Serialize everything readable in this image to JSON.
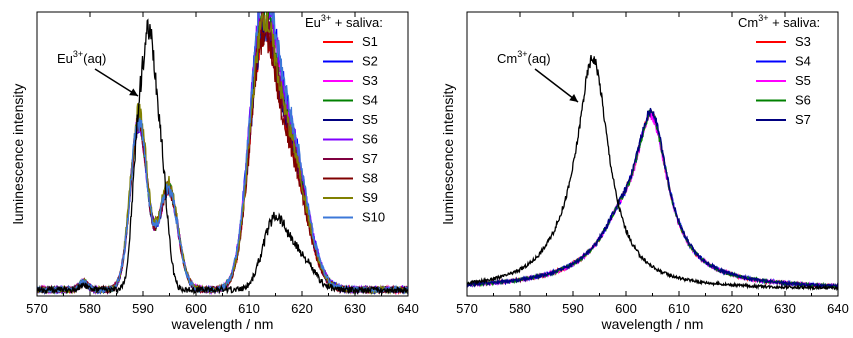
{
  "chart_data": [
    {
      "type": "line",
      "title": "",
      "xlabel": "wavelength / nm",
      "ylabel": "luminescence intensity",
      "xlim": [
        570,
        640
      ],
      "ylim": [
        0,
        1.0
      ],
      "xticks": [
        570,
        580,
        590,
        600,
        610,
        620,
        630,
        640
      ],
      "yticks_shown": false,
      "legend_title_base": "Eu",
      "legend_title_sup": "3+",
      "legend_title_tail": " + saliva:",
      "legend_position": "top-right",
      "annotation": {
        "base": "Eu",
        "sup": "3+",
        "tail": "(aq)",
        "points_to_x": 590.5,
        "points_to_y": 0.8
      },
      "series": [
        {
          "name": "S1",
          "color": "#ff0000",
          "peaks": [
            [
              589.2,
              0.66,
              1.6
            ],
            [
              594.8,
              0.4,
              1.8
            ],
            [
              612.4,
              0.86,
              2.4
            ],
            [
              617.5,
              0.52,
              3.2
            ],
            [
              578.8,
              0.03,
              0.8
            ]
          ]
        },
        {
          "name": "S2",
          "color": "#0000ff",
          "peaks": [
            [
              589.2,
              0.66,
              1.6
            ],
            [
              594.8,
              0.4,
              1.8
            ],
            [
              612.4,
              1.0,
              2.4
            ],
            [
              617.5,
              0.62,
              3.2
            ],
            [
              578.8,
              0.03,
              0.8
            ]
          ]
        },
        {
          "name": "S3",
          "color": "#ff00ff",
          "peaks": [
            [
              589.2,
              0.66,
              1.6
            ],
            [
              594.8,
              0.4,
              1.8
            ],
            [
              612.4,
              0.98,
              2.4
            ],
            [
              617.5,
              0.6,
              3.2
            ],
            [
              578.8,
              0.03,
              0.8
            ]
          ]
        },
        {
          "name": "S4",
          "color": "#008000",
          "peaks": [
            [
              589.2,
              0.66,
              1.6
            ],
            [
              594.8,
              0.4,
              1.8
            ],
            [
              612.4,
              0.93,
              2.4
            ],
            [
              617.5,
              0.58,
              3.2
            ],
            [
              578.8,
              0.03,
              0.8
            ]
          ]
        },
        {
          "name": "S5",
          "color": "#000080",
          "peaks": [
            [
              589.2,
              0.66,
              1.6
            ],
            [
              594.8,
              0.4,
              1.8
            ],
            [
              612.4,
              0.87,
              2.4
            ],
            [
              617.5,
              0.54,
              3.2
            ],
            [
              578.8,
              0.03,
              0.8
            ]
          ]
        },
        {
          "name": "S6",
          "color": "#8000ff",
          "peaks": [
            [
              589.2,
              0.66,
              1.6
            ],
            [
              594.8,
              0.4,
              1.8
            ],
            [
              612.4,
              0.99,
              2.4
            ],
            [
              617.5,
              0.61,
              3.2
            ],
            [
              578.8,
              0.03,
              0.8
            ]
          ]
        },
        {
          "name": "S7",
          "color": "#800040",
          "peaks": [
            [
              589.2,
              0.66,
              1.6
            ],
            [
              594.8,
              0.4,
              1.8
            ],
            [
              612.4,
              0.89,
              2.4
            ],
            [
              617.5,
              0.55,
              3.2
            ],
            [
              578.8,
              0.03,
              0.8
            ]
          ]
        },
        {
          "name": "S8",
          "color": "#800000",
          "peaks": [
            [
              589.2,
              0.66,
              1.6
            ],
            [
              594.8,
              0.4,
              1.8
            ],
            [
              612.4,
              0.85,
              2.4
            ],
            [
              617.5,
              0.51,
              3.2
            ],
            [
              578.8,
              0.03,
              0.8
            ]
          ]
        },
        {
          "name": "S9",
          "color": "#808000",
          "peaks": [
            [
              589.2,
              0.7,
              1.6
            ],
            [
              594.8,
              0.42,
              1.8
            ],
            [
              612.4,
              0.9,
              2.4
            ],
            [
              617.5,
              0.56,
              3.2
            ],
            [
              578.8,
              0.03,
              0.8
            ]
          ]
        },
        {
          "name": "S10",
          "color": "#3c78d8",
          "peaks": [
            [
              589.2,
              0.66,
              1.6
            ],
            [
              594.8,
              0.4,
              1.8
            ],
            [
              612.4,
              1.0,
              2.4
            ],
            [
              617.5,
              0.63,
              3.2
            ],
            [
              578.8,
              0.03,
              0.8
            ]
          ]
        },
        {
          "name": "",
          "color": "#000000",
          "peaks": [
            [
              591.0,
              0.97,
              1.5
            ],
            [
              588.7,
              0.3,
              1.0
            ],
            [
              593.6,
              0.35,
              1.2
            ],
            [
              614.8,
              0.27,
              2.2
            ],
            [
              619.5,
              0.13,
              2.5
            ],
            [
              578.8,
              0.02,
              0.8
            ]
          ]
        }
      ]
    },
    {
      "type": "line",
      "title": "",
      "xlabel": "wavelength / nm",
      "ylabel": "luminescence intensity",
      "xlim": [
        570,
        640
      ],
      "ylim": [
        0,
        1.0
      ],
      "xticks": [
        570,
        580,
        590,
        600,
        610,
        620,
        630,
        640
      ],
      "yticks_shown": false,
      "legend_title_base": "Cm",
      "legend_title_sup": "3+",
      "legend_title_tail": " + saliva:",
      "legend_position": "top-right",
      "annotation": {
        "base": "Cm",
        "sup": "3+",
        "tail": "(aq)",
        "points_to_x": 591.5,
        "points_to_y": 0.75
      },
      "series": [
        {
          "name": "S3",
          "color": "#ff0000",
          "lorentz": [
            [
              604.8,
              0.6,
              3.8
            ],
            [
              598.5,
              0.1,
              4.0
            ],
            [
              600.0,
              0.08,
              12.0
            ]
          ]
        },
        {
          "name": "S4",
          "color": "#0000ff",
          "lorentz": [
            [
              604.8,
              0.6,
              3.8
            ],
            [
              598.5,
              0.1,
              4.0
            ],
            [
              600.0,
              0.08,
              12.0
            ]
          ]
        },
        {
          "name": "S5",
          "color": "#ff00ff",
          "lorentz": [
            [
              604.8,
              0.59,
              3.8
            ],
            [
              598.5,
              0.1,
              4.0
            ],
            [
              600.0,
              0.08,
              12.0
            ]
          ]
        },
        {
          "name": "S6",
          "color": "#008000",
          "lorentz": [
            [
              604.8,
              0.6,
              3.8
            ],
            [
              598.5,
              0.1,
              4.0
            ],
            [
              600.0,
              0.08,
              12.0
            ]
          ]
        },
        {
          "name": "S7",
          "color": "#000080",
          "lorentz": [
            [
              604.8,
              0.61,
              3.8
            ],
            [
              598.5,
              0.1,
              4.0
            ],
            [
              600.0,
              0.08,
              12.0
            ]
          ]
        },
        {
          "name": "",
          "color": "#000000",
          "lorentz": [
            [
              593.8,
              0.87,
              3.6
            ],
            [
              589.0,
              0.08,
              6.0
            ]
          ]
        }
      ]
    }
  ]
}
